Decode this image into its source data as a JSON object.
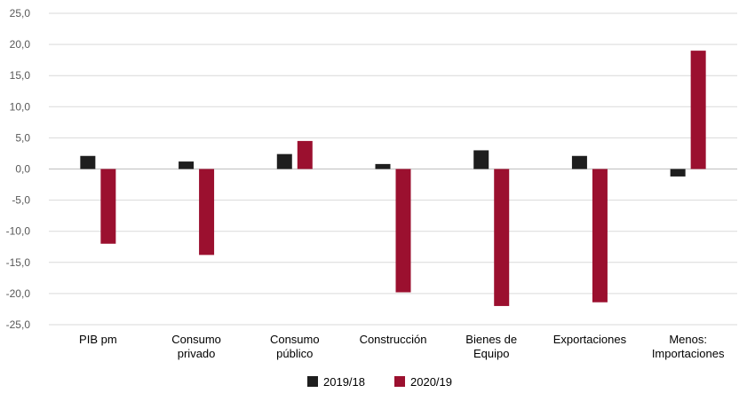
{
  "chart_data": {
    "type": "bar",
    "title": "",
    "xlabel": "",
    "ylabel": "",
    "ylim": [
      -25,
      25
    ],
    "yticks": [
      25,
      20,
      15,
      10,
      5,
      0,
      -5,
      -10,
      -15,
      -20,
      -25
    ],
    "ytick_labels": [
      "25,0",
      "20,0",
      "15,0",
      "10,0",
      "5,0",
      "0,0",
      "-5,0",
      "-10,0",
      "-15,0",
      "-20,0",
      "-25,0"
    ],
    "grid": true,
    "legend_position": "bottom-center",
    "categories": [
      [
        "PIB pm"
      ],
      [
        "Consumo",
        "privado"
      ],
      [
        "Consumo",
        "público"
      ],
      [
        "Construcción"
      ],
      [
        "Bienes de",
        "Equipo"
      ],
      [
        "Exportaciones"
      ],
      [
        "Menos:",
        "Importaciones"
      ]
    ],
    "series": [
      {
        "name": "2019/18",
        "color": "#1e1e1e",
        "values": [
          2.1,
          1.2,
          2.4,
          0.8,
          3.0,
          2.1,
          -1.2
        ]
      },
      {
        "name": "2020/19",
        "color": "#9b102f",
        "values": [
          -12.0,
          -13.8,
          4.5,
          -19.8,
          -22.0,
          -21.4,
          19.0
        ]
      }
    ]
  }
}
